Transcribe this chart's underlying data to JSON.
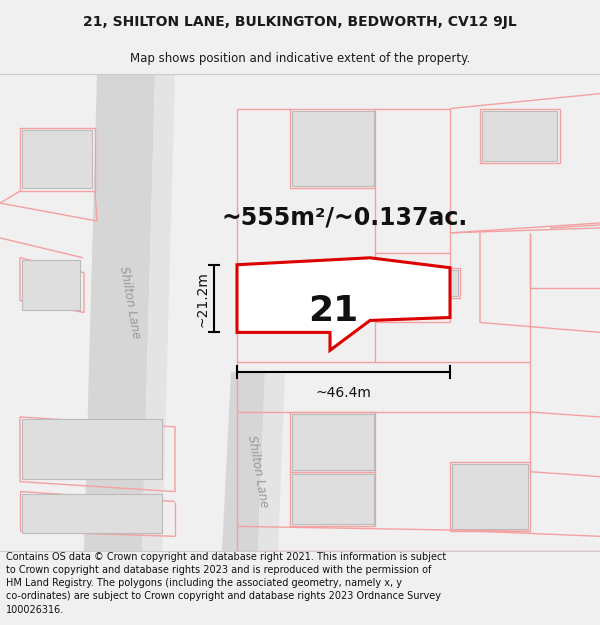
{
  "title_line1": "21, SHILTON LANE, BULKINGTON, BEDWORTH, CV12 9JL",
  "title_line2": "Map shows position and indicative extent of the property.",
  "area_label": "~555m²/~0.137ac.",
  "number_label": "21",
  "dim_width": "~46.4m",
  "dim_height": "~21.2m",
  "road_label_upper": "Shilton Lane",
  "road_label_lower": "Shilton Lane",
  "footer_text": "Contains OS data © Crown copyright and database right 2021. This information is subject to Crown copyright and database rights 2023 and is reproduced with the permission of HM Land Registry. The polygons (including the associated geometry, namely x, y co-ordinates) are subject to Crown copyright and database rights 2023 Ordnance Survey 100026316.",
  "bg_color": "#f0f0f0",
  "map_bg": "#ffffff",
  "building_fill": "#dedede",
  "building_edge": "#bbbbbb",
  "plot_fill": "#ffffff",
  "plot_edge": "#dd0000",
  "pink_line": "#f4a0a0",
  "road_fill": "#d6d6d6",
  "road_fill2": "#e4e4e4",
  "title_fontsize": 10,
  "subtitle_fontsize": 8.5,
  "area_fontsize": 17,
  "number_fontsize": 26,
  "footer_fontsize": 7,
  "dim_fontsize": 10,
  "road_label_fontsize": 8.5
}
